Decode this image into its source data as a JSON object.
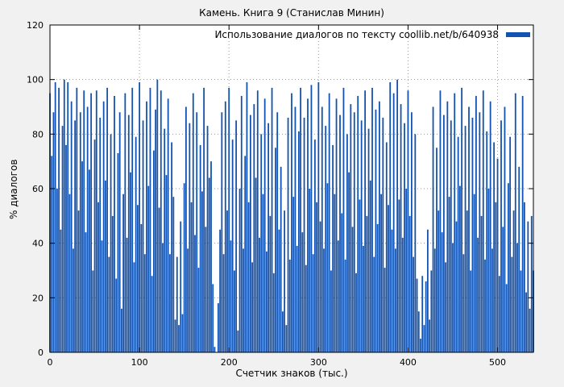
{
  "colors": {
    "figure_bg": "#f1f1f1",
    "plot_bg": "#ffffff",
    "grid": "#9a9a9a",
    "axis": "#000000",
    "series": "#1253b0"
  },
  "chart_data": {
    "type": "bar",
    "title": "Камень. Книга 9 (Станислав Минин)",
    "legend": "Использование диалогов по тексту coollib.net/b/640938",
    "xlabel": "Счетчик знаков (тыс.)",
    "ylabel": "% диалогов",
    "xlim": [
      0,
      540
    ],
    "ylim": [
      0,
      120
    ],
    "x_ticks": [
      0,
      100,
      200,
      300,
      400,
      500
    ],
    "y_ticks": [
      0,
      20,
      40,
      60,
      80,
      100,
      120
    ],
    "grid": true,
    "legend_position": "top-right",
    "x_step": 2,
    "values": [
      95,
      72,
      88,
      99,
      60,
      97,
      45,
      83,
      100,
      76,
      99,
      58,
      92,
      38,
      85,
      97,
      52,
      88,
      70,
      96,
      44,
      90,
      67,
      95,
      30,
      78,
      96,
      55,
      86,
      41,
      92,
      63,
      97,
      35,
      80,
      50,
      94,
      27,
      73,
      88,
      16,
      58,
      95,
      42,
      87,
      66,
      97,
      33,
      79,
      54,
      99,
      47,
      85,
      36,
      92,
      61,
      97,
      28,
      74,
      89,
      100,
      53,
      96,
      40,
      82,
      65,
      93,
      36,
      77,
      57,
      12,
      35,
      10,
      48,
      14,
      62,
      90,
      38,
      84,
      55,
      95,
      43,
      88,
      31,
      76,
      59,
      97,
      46,
      83,
      64,
      70,
      25,
      2,
      0,
      18,
      45,
      88,
      36,
      92,
      52,
      97,
      41,
      78,
      30,
      85,
      8,
      60,
      94,
      38,
      72,
      99,
      55,
      87,
      33,
      91,
      64,
      96,
      42,
      80,
      58,
      93,
      37,
      84,
      50,
      97,
      29,
      75,
      88,
      45,
      68,
      15,
      52,
      10,
      86,
      34,
      95,
      57,
      90,
      39,
      81,
      97,
      44,
      86,
      32,
      93,
      60,
      98,
      36,
      78,
      55,
      99,
      48,
      90,
      38,
      83,
      62,
      95,
      30,
      76,
      58,
      93,
      41,
      87,
      51,
      97,
      34,
      80,
      66,
      91,
      46,
      88,
      29,
      94,
      56,
      85,
      39,
      96,
      50,
      82,
      63,
      97,
      35,
      89,
      47,
      92,
      58,
      86,
      31,
      77,
      54,
      99,
      45,
      95,
      38,
      100,
      56,
      91,
      42,
      84,
      60,
      96,
      50,
      88,
      35,
      80,
      27,
      15,
      5,
      28,
      10,
      26,
      45,
      12,
      30,
      90,
      38,
      75,
      52,
      96,
      44,
      87,
      33,
      92,
      57,
      85,
      40,
      95,
      48,
      79,
      61,
      97,
      36,
      83,
      52,
      90,
      30,
      86,
      58,
      94,
      42,
      88,
      50,
      96,
      34,
      81,
      60,
      92,
      38,
      77,
      55,
      71,
      28,
      85,
      46,
      90,
      25,
      62,
      79,
      35,
      52,
      95,
      40,
      68,
      30,
      94,
      55,
      22,
      48,
      16,
      50,
      30
    ]
  }
}
